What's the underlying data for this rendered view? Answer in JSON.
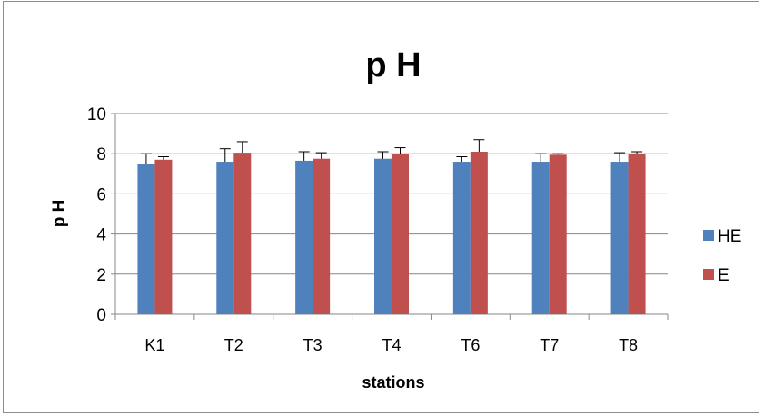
{
  "chart_data": {
    "type": "bar",
    "title": "p H",
    "xlabel": "stations",
    "ylabel": "p H",
    "categories": [
      "K1",
      "T2",
      "T3",
      "T4",
      "T6",
      "T7",
      "T8"
    ],
    "ylim": [
      0,
      10
    ],
    "yticks": [
      0,
      2,
      4,
      6,
      8,
      10
    ],
    "grid": true,
    "legend_position": "right",
    "series": [
      {
        "name": "HE",
        "color": "#4f81bd",
        "values": [
          7.5,
          7.6,
          7.65,
          7.75,
          7.6,
          7.6,
          7.6
        ],
        "error": [
          0.5,
          0.65,
          0.45,
          0.35,
          0.25,
          0.4,
          0.45
        ]
      },
      {
        "name": "E",
        "color": "#c0504d",
        "values": [
          7.7,
          8.05,
          7.75,
          8.0,
          8.1,
          7.95,
          8.0
        ],
        "error": [
          0.15,
          0.55,
          0.3,
          0.3,
          0.6,
          0.05,
          0.1
        ]
      }
    ]
  }
}
